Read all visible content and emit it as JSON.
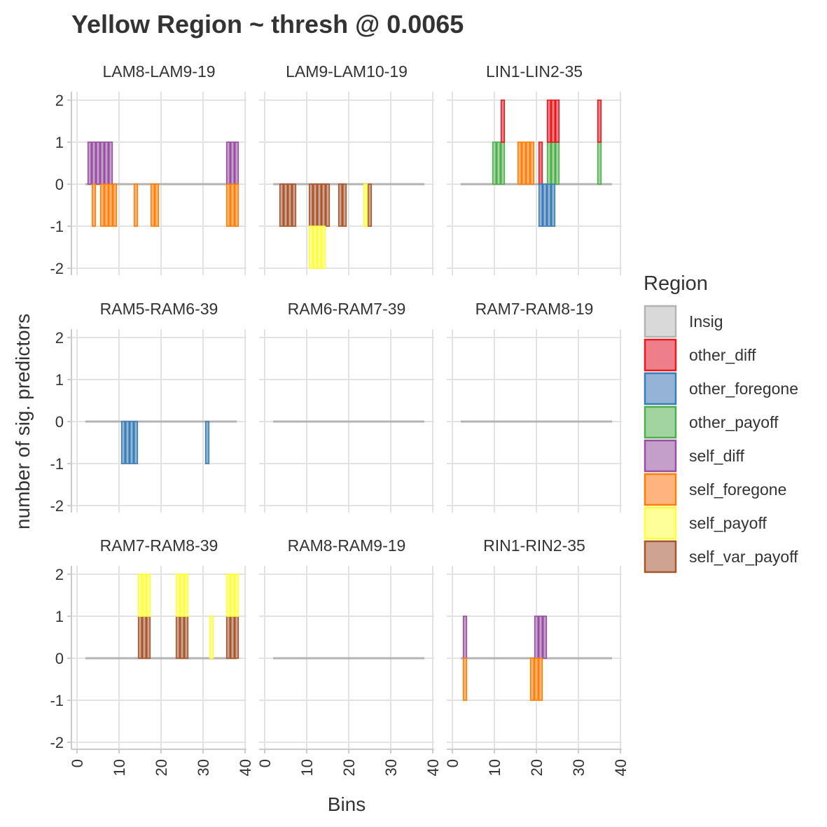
{
  "chart_data": {
    "type": "bar",
    "subtype": "faceted stacked bar (3x3 facets)",
    "title": "Yellow Region ~ thresh @ 0.0065",
    "xlabel": "Bins",
    "ylabel": "number of sig. predictors",
    "xlim": [
      0,
      40
    ],
    "ylim": [
      -2,
      2
    ],
    "x_ticks": [
      0,
      10,
      20,
      30,
      40
    ],
    "y_ticks": [
      -2,
      -1,
      0,
      1,
      2
    ],
    "grid": true,
    "legend": {
      "title": "Region",
      "position": "right",
      "entries": [
        {
          "name": "Insig",
          "fill": "#d9d9d9",
          "stroke": "#b3b3b3"
        },
        {
          "name": "other_diff",
          "fill": "#ee7f88",
          "stroke": "#e41a1c"
        },
        {
          "name": "other_foregone",
          "fill": "#94b3d5",
          "stroke": "#377eb8"
        },
        {
          "name": "other_payoff",
          "fill": "#a1d49e",
          "stroke": "#4daf4a"
        },
        {
          "name": "self_diff",
          "fill": "#c39fca",
          "stroke": "#984ea3"
        },
        {
          "name": "self_foregone",
          "fill": "#ffb480",
          "stroke": "#ff7f00"
        },
        {
          "name": "self_payoff",
          "fill": "#ffff99",
          "stroke": "#ffff33"
        },
        {
          "name": "self_var_payoff",
          "fill": "#cfa391",
          "stroke": "#a65628"
        }
      ]
    },
    "facets": [
      {
        "label": "LAM8-LAM9-19",
        "x_range": [
          2,
          38
        ],
        "bars": [
          {
            "region": "self_diff",
            "bins": [
              3,
              4,
              5,
              6,
              7,
              8
            ],
            "from": 0,
            "to": 1
          },
          {
            "region": "self_diff",
            "bins": [
              36,
              37,
              38
            ],
            "from": 0,
            "to": 1
          },
          {
            "region": "self_foregone",
            "bins": [
              4
            ],
            "from": 0,
            "to": -1
          },
          {
            "region": "self_foregone",
            "bins": [
              6,
              7,
              8,
              9
            ],
            "from": 0,
            "to": -1
          },
          {
            "region": "self_foregone",
            "bins": [
              14
            ],
            "from": 0,
            "to": -1
          },
          {
            "region": "self_foregone",
            "bins": [
              18,
              19
            ],
            "from": 0,
            "to": -1
          },
          {
            "region": "self_foregone",
            "bins": [
              36,
              37,
              38
            ],
            "from": 0,
            "to": -1
          }
        ]
      },
      {
        "label": "LAM9-LAM10-19",
        "x_range": [
          2,
          38
        ],
        "bars": [
          {
            "region": "self_var_payoff",
            "bins": [
              4,
              5,
              6,
              7
            ],
            "from": 0,
            "to": -1
          },
          {
            "region": "self_var_payoff",
            "bins": [
              11,
              12,
              13,
              14,
              15
            ],
            "from": 0,
            "to": -1
          },
          {
            "region": "self_var_payoff",
            "bins": [
              18,
              19
            ],
            "from": 0,
            "to": -1
          },
          {
            "region": "self_var_payoff",
            "bins": [
              25
            ],
            "from": 0,
            "to": -1
          },
          {
            "region": "self_payoff",
            "bins": [
              11,
              12,
              13,
              14
            ],
            "from": -1,
            "to": -2
          },
          {
            "region": "self_payoff",
            "bins": [
              24
            ],
            "from": 0,
            "to": -1
          }
        ]
      },
      {
        "label": "LIN1-LIN2-35",
        "x_range": [
          2,
          38
        ],
        "bars": [
          {
            "region": "other_payoff",
            "bins": [
              10,
              11,
              12
            ],
            "from": 0,
            "to": 1
          },
          {
            "region": "other_diff",
            "bins": [
              12
            ],
            "from": 1,
            "to": 2
          },
          {
            "region": "self_foregone",
            "bins": [
              16,
              17,
              18,
              19
            ],
            "from": 0,
            "to": 1
          },
          {
            "region": "other_diff",
            "bins": [
              21
            ],
            "from": 0,
            "to": 1
          },
          {
            "region": "other_payoff",
            "bins": [
              23,
              24,
              25
            ],
            "from": 0,
            "to": 1
          },
          {
            "region": "other_diff",
            "bins": [
              23,
              24,
              25
            ],
            "from": 1,
            "to": 2
          },
          {
            "region": "other_foregone",
            "bins": [
              21,
              22,
              23,
              24
            ],
            "from": 0,
            "to": -1
          },
          {
            "region": "other_payoff",
            "bins": [
              35
            ],
            "from": 0,
            "to": 1
          },
          {
            "region": "other_diff",
            "bins": [
              35
            ],
            "from": 1,
            "to": 2
          }
        ]
      },
      {
        "label": "RAM5-RAM6-39",
        "x_range": [
          2,
          38
        ],
        "bars": [
          {
            "region": "other_foregone",
            "bins": [
              11,
              12,
              13,
              14
            ],
            "from": 0,
            "to": -1
          },
          {
            "region": "other_foregone",
            "bins": [
              31
            ],
            "from": 0,
            "to": -1
          }
        ]
      },
      {
        "label": "RAM6-RAM7-39",
        "x_range": [
          2,
          38
        ],
        "bars": []
      },
      {
        "label": "RAM7-RAM8-19",
        "x_range": [
          2,
          38
        ],
        "bars": []
      },
      {
        "label": "RAM7-RAM8-39",
        "x_range": [
          2,
          38
        ],
        "bars": [
          {
            "region": "self_var_payoff",
            "bins": [
              15,
              16,
              17
            ],
            "from": 0,
            "to": 1
          },
          {
            "region": "self_payoff",
            "bins": [
              15,
              16,
              17
            ],
            "from": 1,
            "to": 2
          },
          {
            "region": "self_var_payoff",
            "bins": [
              24,
              25,
              26
            ],
            "from": 0,
            "to": 1
          },
          {
            "region": "self_payoff",
            "bins": [
              24,
              25,
              26
            ],
            "from": 1,
            "to": 2
          },
          {
            "region": "self_payoff",
            "bins": [
              32
            ],
            "from": 0,
            "to": 1
          },
          {
            "region": "self_var_payoff",
            "bins": [
              36,
              37,
              38
            ],
            "from": 0,
            "to": 1
          },
          {
            "region": "self_payoff",
            "bins": [
              36,
              37,
              38
            ],
            "from": 1,
            "to": 2
          }
        ]
      },
      {
        "label": "RAM8-RAM9-19",
        "x_range": [
          2,
          38
        ],
        "bars": []
      },
      {
        "label": "RIN1-RIN2-35",
        "x_range": [
          2,
          38
        ],
        "bars": [
          {
            "region": "self_diff",
            "bins": [
              3
            ],
            "from": 0,
            "to": 1
          },
          {
            "region": "self_foregone",
            "bins": [
              3
            ],
            "from": 0,
            "to": -1
          },
          {
            "region": "self_diff",
            "bins": [
              20,
              21,
              22
            ],
            "from": 0,
            "to": 1
          },
          {
            "region": "self_foregone",
            "bins": [
              19,
              20,
              21
            ],
            "from": 0,
            "to": -1
          }
        ]
      }
    ]
  }
}
